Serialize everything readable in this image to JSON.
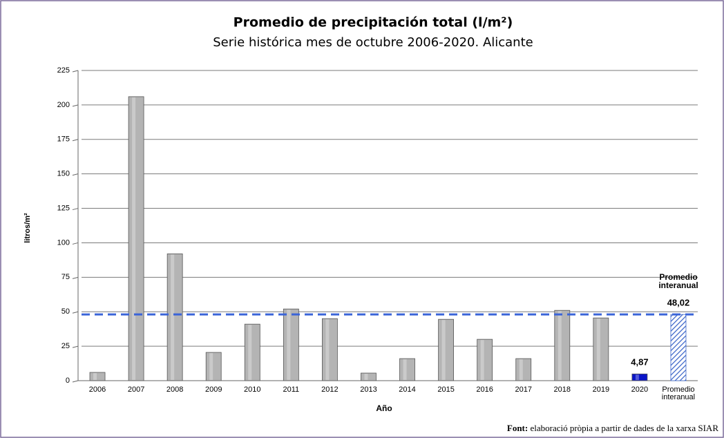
{
  "chart_data": {
    "type": "bar",
    "title": "Promedio de precipitación total (l/m²)",
    "subtitle": "Serie histórica mes de octubre 2006-2020. Alicante",
    "y_label": "litros/m²",
    "x_label": "Año",
    "categories": [
      "2006",
      "2007",
      "2008",
      "2009",
      "2010",
      "2011",
      "2012",
      "2013",
      "2014",
      "2015",
      "2016",
      "2017",
      "2018",
      "2019",
      "2020",
      "Promedio interanual"
    ],
    "values": [
      6,
      206,
      92,
      20.5,
      41,
      52,
      45,
      5.5,
      16,
      44.5,
      30,
      16,
      51,
      45.5,
      4.87,
      48.02
    ],
    "value_labels": [
      null,
      null,
      null,
      null,
      null,
      null,
      null,
      null,
      null,
      null,
      null,
      null,
      null,
      null,
      "4,87",
      "48,02"
    ],
    "colors": [
      "#b4b4b4",
      "#b4b4b4",
      "#b4b4b4",
      "#b4b4b4",
      "#b4b4b4",
      "#b4b4b4",
      "#b4b4b4",
      "#b4b4b4",
      "#b4b4b4",
      "#b4b4b4",
      "#b4b4b4",
      "#b4b4b4",
      "#b4b4b4",
      "#b4b4b4",
      "#0a14c8",
      "#3a64c8"
    ],
    "patterns": [
      null,
      null,
      null,
      null,
      null,
      null,
      null,
      null,
      null,
      null,
      null,
      null,
      null,
      null,
      null,
      "diagonal"
    ],
    "reference_line": {
      "label": "Promedio interanual",
      "color": "#3a64d8",
      "style": "dashed"
    },
    "ylim": [
      0,
      225
    ],
    "yticks": [
      0,
      25,
      50,
      75,
      100,
      125,
      150,
      175,
      200,
      225
    ],
    "grid": true,
    "source_label": "Font:",
    "source": "elaboració pròpia a partir de dades de la xarxa SIAR"
  }
}
